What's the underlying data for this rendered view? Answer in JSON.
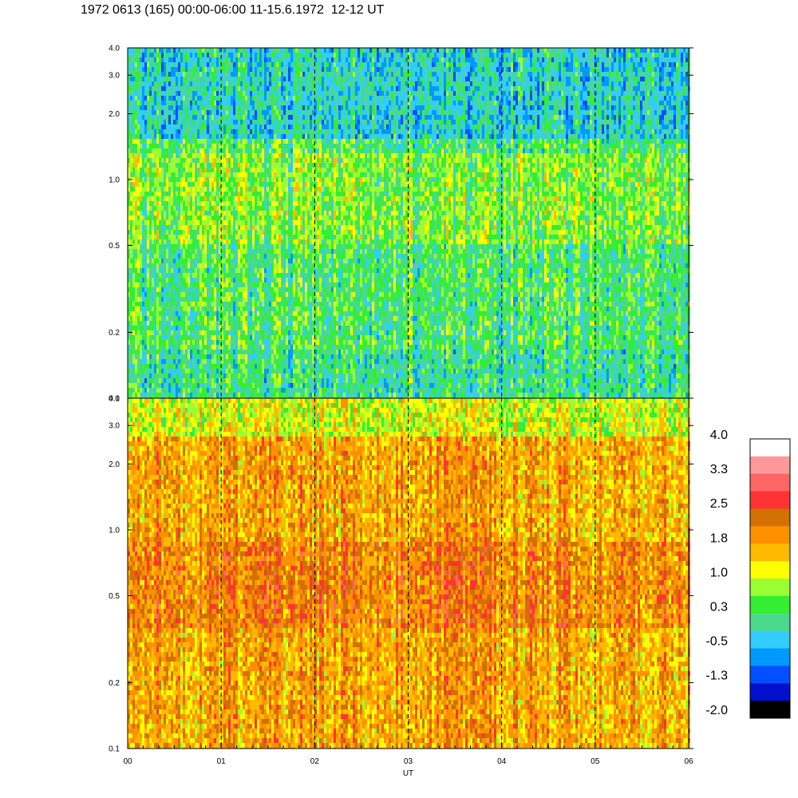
{
  "header": {
    "title": "1972 0613 (165) 00:00-06:00 11-15.6.1972  12-12 UT"
  },
  "chart_data": {
    "type": "heatmap",
    "title": "1972 0613 (165) 00:00-06:00 11-15.6.1972  12-12 UT",
    "xlabel": "UT",
    "ylabel": "",
    "x_ticks": [
      "00",
      "01",
      "02",
      "03",
      "04",
      "05",
      "06"
    ],
    "x_range": [
      0,
      6
    ],
    "y_scale": "log",
    "panels": [
      {
        "name": "upper",
        "y_range": [
          0.1,
          4.0
        ],
        "y_ticks": [
          {
            "value": 0.1,
            "label": "0.1"
          },
          {
            "value": 0.2,
            "label": "0.2"
          },
          {
            "value": 0.5,
            "label": "0.5"
          },
          {
            "value": 1.0,
            "label": "1.0"
          },
          {
            "value": 2.0,
            "label": "2.0"
          },
          {
            "value": 3.0,
            "label": "3.0"
          },
          {
            "value": 4.0,
            "label": "4.0"
          }
        ],
        "dominant_level": 0.3
      },
      {
        "name": "lower",
        "y_range": [
          0.1,
          4.0
        ],
        "y_ticks": [
          {
            "value": 0.1,
            "label": "0.1"
          },
          {
            "value": 0.2,
            "label": "0.2"
          },
          {
            "value": 0.5,
            "label": "0.5"
          },
          {
            "value": 1.0,
            "label": "1.0"
          },
          {
            "value": 2.0,
            "label": "2.0"
          },
          {
            "value": 3.0,
            "label": "3.0"
          },
          {
            "value": 4.0,
            "label": "4.0"
          }
        ],
        "dominant_level": 1.8
      }
    ],
    "dashed_hour_lines": [
      1,
      2,
      3,
      4,
      5
    ],
    "colorbar": {
      "labels": [
        "4.0",
        "3.3",
        "2.5",
        "1.8",
        "1.0",
        "0.3",
        "-0.5",
        "-1.3",
        "-2.0"
      ],
      "colors": [
        "#ffffff",
        "#ff9999",
        "#ff6666",
        "#ff3333",
        "#d27000",
        "#ff9000",
        "#ffba00",
        "#ffff00",
        "#99ff33",
        "#33ee33",
        "#4dd98c",
        "#33ccff",
        "#0099ff",
        "#0050ff",
        "#0010cc",
        "#000000"
      ]
    }
  }
}
